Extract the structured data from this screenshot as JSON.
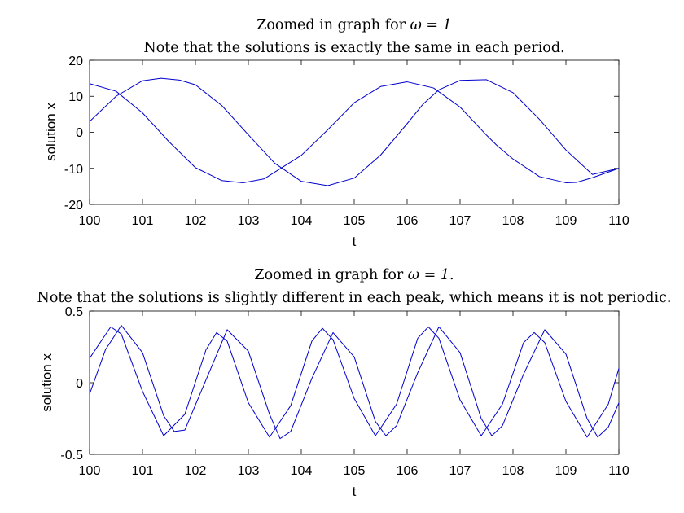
{
  "chart_data": [
    {
      "type": "line",
      "title_text": "Zoomed in graph for ",
      "title_math": "ω = 1",
      "title_suffix": "",
      "subtitle": "Note that the solutions is exactly the same in each period.",
      "xlabel": "t",
      "ylabel": "solution x",
      "xlim": [
        100,
        110
      ],
      "ylim": [
        -20,
        20
      ],
      "xticks": [
        "100",
        "101",
        "102",
        "103",
        "104",
        "105",
        "106",
        "107",
        "108",
        "109",
        "110"
      ],
      "yticks": [
        "20",
        "10",
        "0",
        "-10",
        "-20"
      ],
      "grid": false,
      "color": "#0000cc",
      "series": [
        {
          "x": [
            100,
            100.5,
            101,
            101.35,
            101.7,
            102,
            102.5,
            103,
            103.5,
            104,
            104.5,
            105,
            105.5,
            106,
            106.3,
            106.6,
            107,
            107.5,
            108,
            108.5,
            109,
            109.5,
            110
          ],
          "values": [
            3,
            10,
            14.3,
            15,
            14.5,
            13.2,
            7.4,
            -0.7,
            -8.6,
            -13.6,
            -14.8,
            -12.7,
            -6.3,
            2.4,
            7.8,
            11.8,
            14.4,
            14.6,
            11,
            3.6,
            -4.9,
            -11.7,
            -10
          ]
        },
        {
          "x": [
            100,
            100.5,
            101,
            101.5,
            102,
            102.5,
            102.9,
            103.3,
            104,
            104.5,
            105,
            105.5,
            106,
            106.5,
            107,
            107.5,
            107.7,
            108,
            108.5,
            109,
            109.2,
            109.5,
            110
          ],
          "values": [
            13.5,
            11.4,
            5.4,
            -2.6,
            -9.8,
            -13.4,
            -14,
            -12.9,
            -6.4,
            0.7,
            8.2,
            12.7,
            14,
            12.3,
            7,
            -0.8,
            -3.7,
            -7.4,
            -12.3,
            -14,
            -13.9,
            -12.6,
            -10
          ]
        }
      ]
    },
    {
      "type": "line",
      "title_text": "Zoomed in graph for ",
      "title_math": "ω = 1",
      "title_suffix": ".",
      "subtitle": "Note that the solutions is slightly different in each peak, which means it is not periodic.",
      "xlabel": "t",
      "ylabel": "solution x",
      "xlim": [
        100,
        110
      ],
      "ylim": [
        -0.5,
        0.5
      ],
      "xticks": [
        "100",
        "101",
        "102",
        "103",
        "104",
        "105",
        "106",
        "107",
        "108",
        "109",
        "110"
      ],
      "yticks": [
        "0.5",
        "0",
        "-0.5"
      ],
      "grid": false,
      "color": "#0000cc",
      "series": [
        {
          "x": [
            100,
            100.4,
            100.6,
            101,
            101.4,
            101.8,
            102.2,
            102.4,
            102.6,
            103,
            103.4,
            103.8,
            104.2,
            104.4,
            104.6,
            105,
            105.4,
            105.8,
            106.2,
            106.4,
            106.6,
            107,
            107.4,
            107.8,
            108.2,
            108.4,
            108.6,
            109,
            109.4,
            109.8,
            110
          ],
          "values": [
            0.17,
            0.39,
            0.34,
            -0.06,
            -0.37,
            -0.22,
            0.23,
            0.35,
            0.29,
            -0.14,
            -0.38,
            -0.16,
            0.29,
            0.38,
            0.3,
            -0.11,
            -0.37,
            -0.15,
            0.31,
            0.39,
            0.31,
            -0.12,
            -0.37,
            -0.15,
            0.28,
            0.35,
            0.28,
            -0.13,
            -0.38,
            -0.15,
            0.1
          ]
        },
        {
          "x": [
            100,
            100.3,
            100.6,
            101,
            101.4,
            101.6,
            101.8,
            102.2,
            102.6,
            103,
            103.4,
            103.6,
            103.8,
            104.2,
            104.6,
            105,
            105.4,
            105.6,
            105.8,
            106.2,
            106.6,
            107,
            107.4,
            107.6,
            107.8,
            108.2,
            108.6,
            109,
            109.4,
            109.6,
            109.8,
            110
          ],
          "values": [
            -0.08,
            0.23,
            0.4,
            0.21,
            -0.23,
            -0.34,
            -0.33,
            0.02,
            0.37,
            0.22,
            -0.22,
            -0.39,
            -0.34,
            0.03,
            0.35,
            0.18,
            -0.27,
            -0.37,
            -0.3,
            0.07,
            0.39,
            0.21,
            -0.25,
            -0.37,
            -0.3,
            0.06,
            0.37,
            0.2,
            -0.25,
            -0.38,
            -0.31,
            -0.14
          ]
        }
      ]
    }
  ]
}
